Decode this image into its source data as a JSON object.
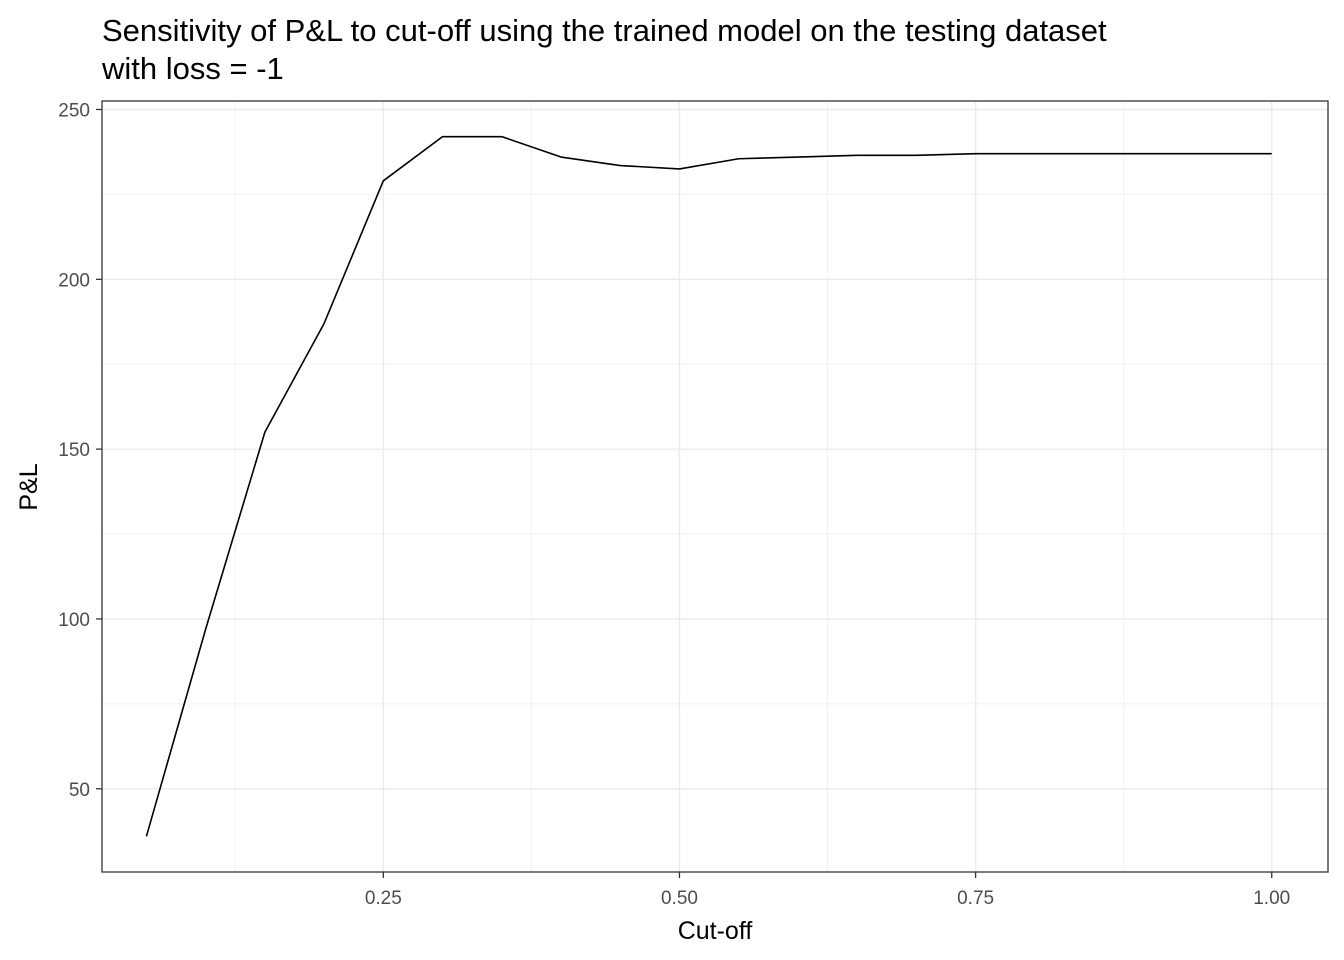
{
  "chart_data": {
    "type": "line",
    "title_lines": [
      "Sensitivity of P&L to cut-off using the trained model on the testing dataset",
      "with loss = -1"
    ],
    "xlabel": "Cut-off",
    "ylabel": "P&L",
    "xlim": [
      0.0125,
      1.0475
    ],
    "ylim": [
      25.5,
      252.5
    ],
    "x_ticks": [
      0.25,
      0.5,
      0.75,
      1.0
    ],
    "x_tick_labels": [
      "0.25",
      "0.50",
      "0.75",
      "1.00"
    ],
    "y_ticks": [
      50,
      100,
      150,
      200,
      250
    ],
    "y_tick_labels": [
      "50",
      "100",
      "150",
      "200",
      "250"
    ],
    "grid": true,
    "line_color": "#000000",
    "series": [
      {
        "x": [
          0.05,
          0.1,
          0.15,
          0.2,
          0.25,
          0.3,
          0.35,
          0.4,
          0.45,
          0.5,
          0.55,
          0.6,
          0.65,
          0.7,
          0.75,
          0.8,
          0.85,
          0.9,
          0.95,
          1.0
        ],
        "values": [
          36,
          97,
          155,
          187,
          229,
          242,
          242,
          236,
          233.5,
          232.5,
          235.5,
          236,
          236.5,
          236.5,
          237,
          237,
          237,
          237,
          237,
          237
        ]
      }
    ]
  }
}
